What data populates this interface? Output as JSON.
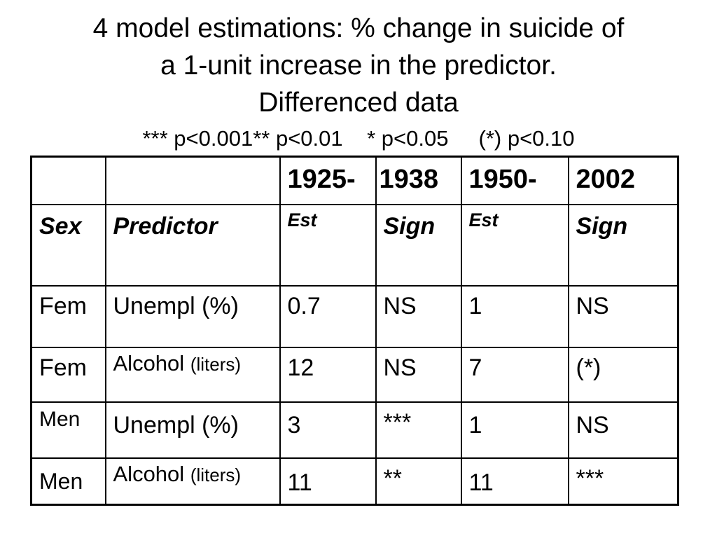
{
  "title": {
    "line1": "4 model estimations: % change in suicide of",
    "line2": "a 1-unit increase in the predictor.",
    "line3": "Differenced data"
  },
  "significance_note": "*** p<0.001** p<0.01    * p<0.05     (*) p<0.10",
  "table": {
    "header": [
      "",
      "",
      "1925-",
      "1938",
      "1950-",
      "2002"
    ],
    "subheader": [
      "Sex",
      "Predictor",
      "Est",
      "Sign",
      "Est",
      "Sign"
    ],
    "rows": [
      {
        "sex": "Fem",
        "predictor": "Unempl (%)",
        "predictor_unit": "",
        "est1": "0.7",
        "sign1": "NS",
        "est2": "1",
        "sign2": "NS"
      },
      {
        "sex": "Fem",
        "predictor": "Alcohol",
        "predictor_unit": "(liters)",
        "est1": "12",
        "sign1": "NS",
        "est2": "7",
        "sign2": "(*)"
      },
      {
        "sex": "Men",
        "predictor": "Unempl (%)",
        "predictor_unit": "",
        "est1": "3",
        "sign1": "***",
        "est2": "1",
        "sign2": "NS"
      },
      {
        "sex": "Men",
        "predictor": "Alcohol",
        "predictor_unit": "(liters)",
        "est1": "11",
        "sign1": "**",
        "est2": "11",
        "sign2": "***"
      }
    ]
  }
}
